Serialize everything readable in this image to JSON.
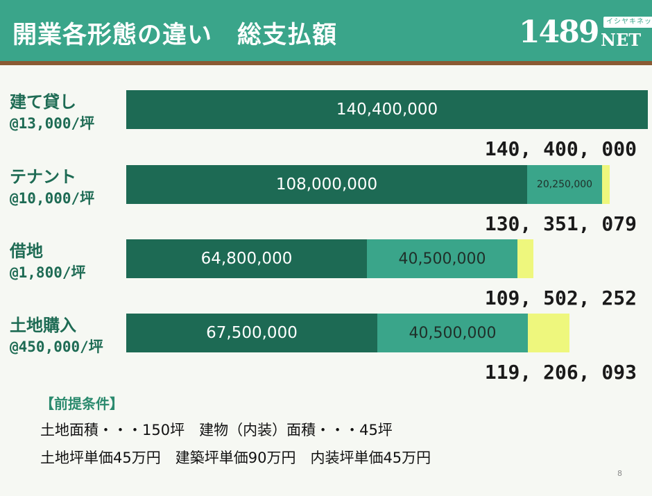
{
  "title": "開業各形態の違い　総支払額",
  "logo": {
    "number": "1489",
    "suffix": "NET",
    "kana": "イシヤキネット"
  },
  "chart_data": {
    "type": "bar",
    "orientation": "horizontal",
    "stacked": true,
    "categories": [
      "建て貸し",
      "テナント",
      "借地",
      "土地購入"
    ],
    "category_rates": [
      "@13,000/坪",
      "@10,000/坪",
      "@1,800/坪",
      "@450,000/坪"
    ],
    "segments": [
      {
        "values": [
          140400000,
          108000000,
          64800000,
          67500000
        ],
        "labels": [
          "140,400,000",
          "108,000,000",
          "64,800,000",
          "67,500,000"
        ],
        "color": "#1d6a54"
      },
      {
        "values": [
          0,
          20250000,
          40500000,
          40500000
        ],
        "labels": [
          "",
          "20,250,000",
          "40,500,000",
          "40,500,000"
        ],
        "color": "#3aa58a"
      },
      {
        "values": [
          0,
          2101079,
          4202252,
          11206093
        ],
        "labels": [
          "",
          "",
          "",
          ""
        ],
        "color": "#eef77d"
      }
    ],
    "totals": [
      140400000,
      130351079,
      109502252,
      119206093
    ],
    "total_labels": [
      "140, 400, 000",
      "130, 351, 079",
      "109, 502, 252",
      "119, 206, 093"
    ],
    "xlim": [
      0,
      140400000
    ]
  },
  "premises": {
    "title": "【前提条件】",
    "line1": "土地面積・・・150坪　建物（内装）面積・・・45坪",
    "line2": "土地坪単価45万円　建築坪単価90万円　内装坪単価45万円"
  },
  "page_number": "8"
}
